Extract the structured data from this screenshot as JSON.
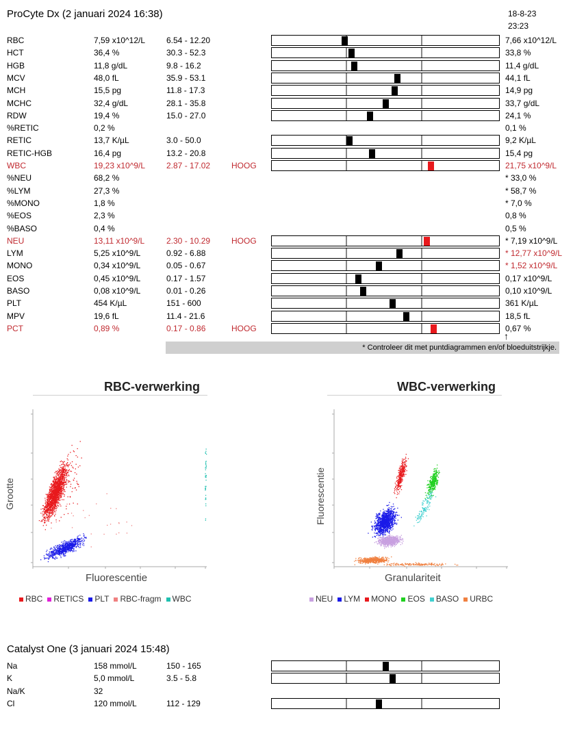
{
  "procyte": {
    "title": "ProCyte Dx (2 januari 2024 16:38)",
    "prev_date": "18-8-23",
    "prev_time": "23:23",
    "rows": [
      {
        "name": "RBC",
        "value": "7,59 x10^12/L",
        "range": "6.54 - 12.20",
        "flag": "",
        "prev": "7,66 x10^12/L",
        "bar": true,
        "pos": 0.32,
        "hi": false,
        "red": false,
        "prev_red": false
      },
      {
        "name": "HCT",
        "value": "36,4 %",
        "range": "30.3 - 52.3",
        "flag": "",
        "prev": "33,8 %",
        "bar": true,
        "pos": 0.35,
        "hi": false,
        "red": false,
        "prev_red": false
      },
      {
        "name": "HGB",
        "value": "11,8 g/dL",
        "range": "9.8 - 16.2",
        "flag": "",
        "prev": "11,4 g/dL",
        "bar": true,
        "pos": 0.36,
        "hi": false,
        "red": false,
        "prev_red": false
      },
      {
        "name": "MCV",
        "value": "48,0 fL",
        "range": "35.9 - 53.1",
        "flag": "",
        "prev": "44,1 fL",
        "bar": true,
        "pos": 0.55,
        "hi": false,
        "red": false,
        "prev_red": false
      },
      {
        "name": "MCH",
        "value": "15,5 pg",
        "range": "11.8 - 17.3",
        "flag": "",
        "prev": "14,9 pg",
        "bar": true,
        "pos": 0.54,
        "hi": false,
        "red": false,
        "prev_red": false
      },
      {
        "name": "MCHC",
        "value": "32,4 g/dL",
        "range": "28.1 - 35.8",
        "flag": "",
        "prev": "33,7 g/dL",
        "bar": true,
        "pos": 0.5,
        "hi": false,
        "red": false,
        "prev_red": false
      },
      {
        "name": "RDW",
        "value": "19,4 %",
        "range": "15.0 - 27.0",
        "flag": "",
        "prev": "24,1 %",
        "bar": true,
        "pos": 0.43,
        "hi": false,
        "red": false,
        "prev_red": false
      },
      {
        "name": "%RETIC",
        "value": "0,2 %",
        "range": "",
        "flag": "",
        "prev": "0,1 %",
        "bar": false,
        "pos": 0,
        "hi": false,
        "red": false,
        "prev_red": false
      },
      {
        "name": "RETIC",
        "value": "13,7 K/µL",
        "range": "3.0 - 50.0",
        "flag": "",
        "prev": "9,2 K/µL",
        "bar": true,
        "pos": 0.34,
        "hi": false,
        "red": false,
        "prev_red": false
      },
      {
        "name": "RETIC-HGB",
        "value": "16,4 pg",
        "range": "13.2 - 20.8",
        "flag": "",
        "prev": "15,4 pg",
        "bar": true,
        "pos": 0.44,
        "hi": false,
        "red": false,
        "prev_red": false
      },
      {
        "name": "WBC",
        "value": "19,23 x10^9/L",
        "range": "2.87 - 17.02",
        "flag": "HOOG",
        "prev": "21,75 x10^9/L",
        "bar": true,
        "pos": 0.7,
        "hi": true,
        "red": true,
        "prev_red": true
      },
      {
        "name": "%NEU",
        "value": "68,2 %",
        "range": "",
        "flag": "",
        "prev": "* 33,0 %",
        "bar": false,
        "pos": 0,
        "hi": false,
        "red": false,
        "prev_red": false
      },
      {
        "name": "%LYM",
        "value": "27,3 %",
        "range": "",
        "flag": "",
        "prev": "* 58,7 %",
        "bar": false,
        "pos": 0,
        "hi": false,
        "red": false,
        "prev_red": false
      },
      {
        "name": "%MONO",
        "value": "1,8 %",
        "range": "",
        "flag": "",
        "prev": "* 7,0 %",
        "bar": false,
        "pos": 0,
        "hi": false,
        "red": false,
        "prev_red": false
      },
      {
        "name": "%EOS",
        "value": "2,3 %",
        "range": "",
        "flag": "",
        "prev": "0,8 %",
        "bar": false,
        "pos": 0,
        "hi": false,
        "red": false,
        "prev_red": false
      },
      {
        "name": "%BASO",
        "value": "0,4 %",
        "range": "",
        "flag": "",
        "prev": "0,5 %",
        "bar": false,
        "pos": 0,
        "hi": false,
        "red": false,
        "prev_red": false
      },
      {
        "name": "NEU",
        "value": "13,11 x10^9/L",
        "range": "2.30 - 10.29",
        "flag": "HOOG",
        "prev": "* 7,19 x10^9/L",
        "bar": true,
        "pos": 0.68,
        "hi": true,
        "red": true,
        "prev_red": false
      },
      {
        "name": "LYM",
        "value": "5,25 x10^9/L",
        "range": "0.92 - 6.88",
        "flag": "",
        "prev": "* 12,77 x10^9/L",
        "bar": true,
        "pos": 0.56,
        "hi": false,
        "red": false,
        "prev_red": true
      },
      {
        "name": "MONO",
        "value": "0,34 x10^9/L",
        "range": "0.05 - 0.67",
        "flag": "",
        "prev": "* 1,52 x10^9/L",
        "bar": true,
        "pos": 0.47,
        "hi": false,
        "red": false,
        "prev_red": true
      },
      {
        "name": "EOS",
        "value": "0,45 x10^9/L",
        "range": "0.17 - 1.57",
        "flag": "",
        "prev": "0,17 x10^9/L",
        "bar": true,
        "pos": 0.38,
        "hi": false,
        "red": false,
        "prev_red": false
      },
      {
        "name": "BASO",
        "value": "0,08 x10^9/L",
        "range": "0.01 - 0.26",
        "flag": "",
        "prev": "0,10 x10^9/L",
        "bar": true,
        "pos": 0.4,
        "hi": false,
        "red": false,
        "prev_red": false
      },
      {
        "name": "PLT",
        "value": "454 K/µL",
        "range": "151 - 600",
        "flag": "",
        "prev": "361 K/µL",
        "bar": true,
        "pos": 0.53,
        "hi": false,
        "red": false,
        "prev_red": false
      },
      {
        "name": "MPV",
        "value": "19,6 fL",
        "range": "11.4 - 21.6",
        "flag": "",
        "prev": "18,5 fL",
        "bar": true,
        "pos": 0.59,
        "hi": false,
        "red": false,
        "prev_red": false
      },
      {
        "name": "PCT",
        "value": "0,89 %",
        "range": "0.17 - 0.86",
        "flag": "HOOG",
        "prev": "0,67 %",
        "bar": true,
        "pos": 0.71,
        "hi": true,
        "red": true,
        "prev_red": false
      }
    ],
    "note": "* Controleer dit met puntdiagrammen en/of bloeduitstrijkje."
  },
  "rbc_plot": {
    "title": "RBC-verwerking",
    "xlabel": "Fluorescentie",
    "ylabel": "Grootte",
    "legend": [
      {
        "label": "RBC",
        "color": "#e8191d"
      },
      {
        "label": "RETICS",
        "color": "#e020d8"
      },
      {
        "label": "PLT",
        "color": "#1a1ae8"
      },
      {
        "label": "RBC-fragm",
        "color": "#f08080"
      },
      {
        "label": "WBC",
        "color": "#20c0b0"
      }
    ]
  },
  "wbc_plot": {
    "title": "WBC-verwerking",
    "xlabel": "Granulariteit",
    "ylabel": "Fluorescentie",
    "legend": [
      {
        "label": "NEU",
        "color": "#c8a0e0"
      },
      {
        "label": "LYM",
        "color": "#1a1ae8"
      },
      {
        "label": "MONO",
        "color": "#e8191d"
      },
      {
        "label": "EOS",
        "color": "#20d020"
      },
      {
        "label": "BASO",
        "color": "#40d0d0"
      },
      {
        "label": "URBC",
        "color": "#f08040"
      }
    ]
  },
  "catalyst": {
    "title": "Catalyst One (3 januari 2024 15:48)",
    "rows": [
      {
        "name": "Na",
        "value": "158 mmol/L",
        "range": "150 - 165",
        "bar": true,
        "pos": 0.5
      },
      {
        "name": "K",
        "value": "5,0 mmol/L",
        "range": "3.5 - 5.8",
        "bar": true,
        "pos": 0.53
      },
      {
        "name": "Na/K",
        "value": "32",
        "range": "",
        "bar": false,
        "pos": 0
      },
      {
        "name": "Cl",
        "value": "120 mmol/L",
        "range": "112 - 129",
        "bar": true,
        "pos": 0.47
      }
    ]
  }
}
